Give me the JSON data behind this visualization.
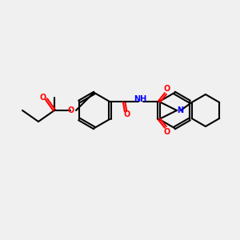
{
  "bg_color": "#f0f0f0",
  "bond_color": "#000000",
  "bond_width": 1.5,
  "atom_colors": {
    "O": "#ff0000",
    "N": "#0000ff",
    "C": "#000000",
    "H": "#555555"
  },
  "figsize": [
    3.0,
    3.0
  ],
  "dpi": 100
}
